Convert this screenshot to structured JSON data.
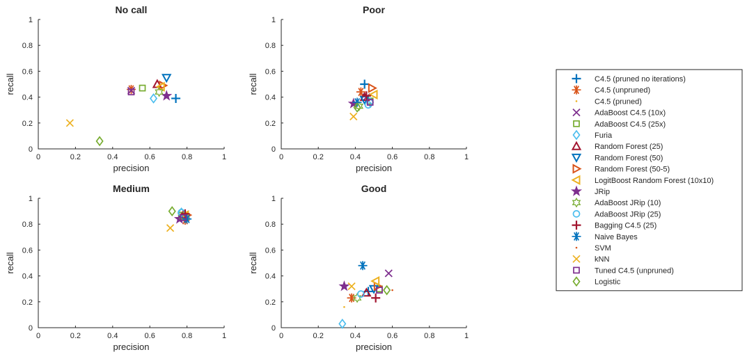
{
  "figure": {
    "legend_entries": [
      {
        "label": "C4.5 (pruned no iterations)",
        "marker": "plus",
        "color": "#0072BD"
      },
      {
        "label": "C4.5 (unpruned)",
        "marker": "asterisk",
        "color": "#D95319"
      },
      {
        "label": "C4.5 (pruned)",
        "marker": "dot",
        "color": "#EDB120"
      },
      {
        "label": "AdaBoost C4.5 (10x)",
        "marker": "x",
        "color": "#7E2F8E"
      },
      {
        "label": "AdaBoost C4.5 (25x)",
        "marker": "square",
        "color": "#77AC30"
      },
      {
        "label": "Furia",
        "marker": "diamond",
        "color": "#4DBEEE"
      },
      {
        "label": "Random Forest (25)",
        "marker": "triangle-up",
        "color": "#A2142F"
      },
      {
        "label": "Random Forest (50)",
        "marker": "triangle-down",
        "color": "#0072BD"
      },
      {
        "label": "Random Forest (50-5)",
        "marker": "triangle-right",
        "color": "#D95319"
      },
      {
        "label": "LogitBoost Random Forest (10x10)",
        "marker": "triangle-left",
        "color": "#EDB120"
      },
      {
        "label": "JRip",
        "marker": "pentagram",
        "color": "#7E2F8E"
      },
      {
        "label": "AdaBoost JRip (10)",
        "marker": "hexagram",
        "color": "#77AC30"
      },
      {
        "label": "AdaBoost JRip (25)",
        "marker": "circle",
        "color": "#4DBEEE"
      },
      {
        "label": "Bagging C4.5 (25)",
        "marker": "plus",
        "color": "#A2142F"
      },
      {
        "label": "Naive Bayes",
        "marker": "asterisk",
        "color": "#0072BD"
      },
      {
        "label": "SVM",
        "marker": "dot",
        "color": "#D95319"
      },
      {
        "label": "kNN",
        "marker": "x",
        "color": "#EDB120"
      },
      {
        "label": "Tuned C4.5 (unpruned)",
        "marker": "square",
        "color": "#7E2F8E"
      },
      {
        "label": "Logistic",
        "marker": "diamond",
        "color": "#77AC30"
      }
    ]
  },
  "chart_data": [
    {
      "type": "scatter",
      "title": "No call",
      "xlabel": "precision",
      "ylabel": "recall",
      "xlim": [
        0,
        1
      ],
      "ylim": [
        0,
        1
      ],
      "xticks": [
        "0",
        "0.2",
        "0.4",
        "0.6",
        "0.8",
        "1"
      ],
      "yticks": [
        "0",
        "0.2",
        "0.4",
        "0.6",
        "0.8",
        "1"
      ],
      "points": [
        [
          0.74,
          0.39
        ],
        [
          0.5,
          0.46
        ],
        null,
        [
          0.5,
          0.45
        ],
        [
          0.56,
          0.47
        ],
        [
          0.62,
          0.39
        ],
        [
          0.64,
          0.5
        ],
        [
          0.69,
          0.55
        ],
        [
          0.67,
          0.49
        ],
        [
          0.66,
          0.48
        ],
        [
          0.69,
          0.41
        ],
        [
          0.65,
          0.44
        ],
        null,
        null,
        null,
        null,
        [
          0.17,
          0.2
        ],
        [
          0.5,
          0.44
        ],
        [
          0.33,
          0.06
        ]
      ]
    },
    {
      "type": "scatter",
      "title": "Poor",
      "xlabel": "precision",
      "ylabel": "recall",
      "xlim": [
        0,
        1
      ],
      "ylim": [
        0,
        1
      ],
      "xticks": [
        "0",
        "0.2",
        "0.4",
        "0.6",
        "0.8",
        "1"
      ],
      "yticks": [
        "0",
        "0.2",
        "0.4",
        "0.6",
        "0.8",
        "1"
      ],
      "points": [
        [
          0.45,
          0.5
        ],
        [
          0.43,
          0.44
        ],
        null,
        [
          0.46,
          0.4
        ],
        [
          0.48,
          0.37
        ],
        [
          0.48,
          0.36
        ],
        [
          0.45,
          0.4
        ],
        [
          0.45,
          0.38
        ],
        [
          0.49,
          0.47
        ],
        [
          0.5,
          0.42
        ],
        [
          0.39,
          0.35
        ],
        [
          0.42,
          0.33
        ],
        [
          0.47,
          0.34
        ],
        [
          0.46,
          0.41
        ],
        [
          0.41,
          0.36
        ],
        null,
        [
          0.39,
          0.25
        ],
        [
          0.48,
          0.36
        ],
        [
          0.41,
          0.32
        ]
      ]
    },
    {
      "type": "scatter",
      "title": "Medium",
      "xlabel": "precision",
      "ylabel": "recall",
      "xlim": [
        0,
        1
      ],
      "ylim": [
        0,
        1
      ],
      "xticks": [
        "0",
        "0.2",
        "0.4",
        "0.6",
        "0.8",
        "1"
      ],
      "yticks": [
        "0",
        "0.2",
        "0.4",
        "0.6",
        "0.8",
        "1"
      ],
      "points": [
        [
          0.79,
          0.85
        ],
        [
          0.79,
          0.83
        ],
        null,
        [
          0.77,
          0.86
        ],
        [
          0.77,
          0.87
        ],
        [
          0.77,
          0.89
        ],
        [
          0.78,
          0.87
        ],
        [
          0.79,
          0.85
        ],
        [
          0.8,
          0.87
        ],
        [
          0.79,
          0.87
        ],
        [
          0.76,
          0.84
        ],
        [
          0.78,
          0.86
        ],
        [
          0.77,
          0.89
        ],
        [
          0.79,
          0.88
        ],
        [
          0.8,
          0.84
        ],
        null,
        [
          0.71,
          0.77
        ],
        [
          0.78,
          0.85
        ],
        [
          0.72,
          0.9
        ]
      ]
    },
    {
      "type": "scatter",
      "title": "Good",
      "xlabel": "precision",
      "ylabel": "recall",
      "xlim": [
        0,
        1
      ],
      "ylim": [
        0,
        1
      ],
      "xticks": [
        "0",
        "0.2",
        "0.4",
        "0.6",
        "0.8",
        "1"
      ],
      "yticks": [
        "0",
        "0.2",
        "0.4",
        "0.6",
        "0.8",
        "1"
      ],
      "points": [
        [
          0.47,
          0.28
        ],
        [
          0.38,
          0.23
        ],
        [
          0.34,
          0.16
        ],
        [
          0.58,
          0.42
        ],
        [
          0.53,
          0.3
        ],
        [
          0.33,
          0.03
        ],
        [
          0.46,
          0.27
        ],
        [
          0.5,
          0.3
        ],
        [
          0.52,
          0.32
        ],
        [
          0.51,
          0.36
        ],
        [
          0.34,
          0.32
        ],
        [
          0.41,
          0.23
        ],
        [
          0.43,
          0.26
        ],
        [
          0.51,
          0.23
        ],
        [
          0.44,
          0.48
        ],
        [
          0.6,
          0.29
        ],
        [
          0.38,
          0.32
        ],
        [
          0.53,
          0.29
        ],
        [
          0.57,
          0.29
        ]
      ]
    }
  ]
}
